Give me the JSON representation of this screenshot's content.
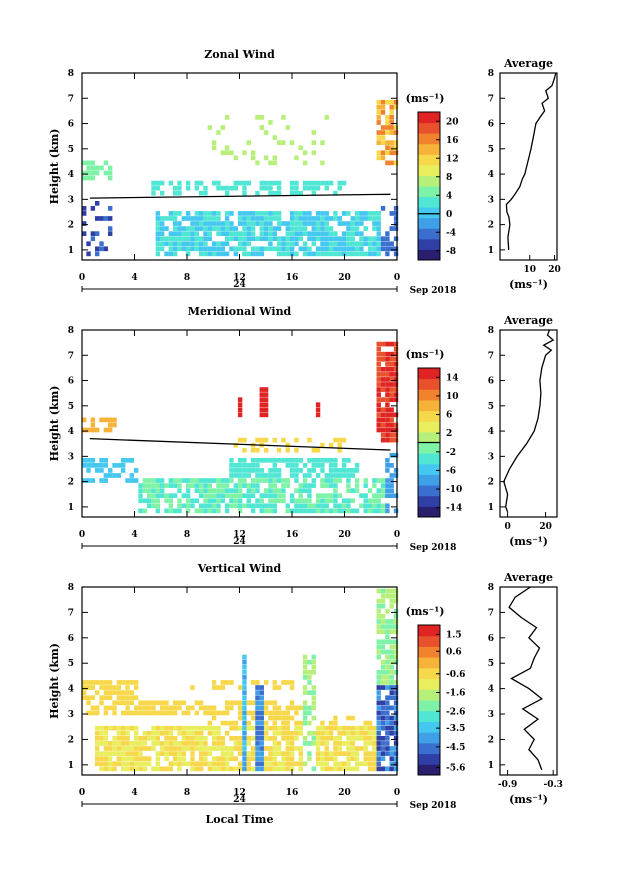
{
  "colors": [
    "#2a1e6e",
    "#2f3fa6",
    "#3a6fd0",
    "#3fa0e8",
    "#45c8f0",
    "#4fe6d4",
    "#7ef2a6",
    "#b6f07a",
    "#e8ee5e",
    "#f7d84a",
    "#f7b23a",
    "#f1822e",
    "#e9502c",
    "#e02424"
  ],
  "date_label": "Sep 2018",
  "day_label": "24",
  "x_label": "Local Time",
  "x_ticks": [
    "0",
    "4",
    "8",
    "12",
    "16",
    "20",
    "0"
  ],
  "chart_data": [
    {
      "type": "heatmap",
      "title": "Zonal Wind",
      "ylabel": "Height (km)",
      "yticks": [
        "1",
        "2",
        "3",
        "4",
        "5",
        "6",
        "7",
        "8"
      ],
      "xlim": [
        0,
        24
      ],
      "ylim": [
        0.6,
        8
      ],
      "colorbar": {
        "unit": "(ms⁻¹)",
        "ticks": [
          "-8",
          "-4",
          "0",
          "4",
          "8",
          "12",
          "16",
          "20"
        ],
        "range": [
          -10,
          22
        ],
        "line_value": 0
      },
      "profile": {
        "title": "Average",
        "xlabel": "(ms⁻¹)",
        "xticks": [
          "10",
          "20"
        ],
        "xtick_values": [
          10,
          20
        ],
        "xlim": [
          -2,
          21
        ],
        "points": [
          [
            1,
            1.5
          ],
          [
            1.5,
            1.2
          ],
          [
            2,
            2.0
          ],
          [
            2.3,
            1.6
          ],
          [
            2.5,
            0.8
          ],
          [
            2.8,
            0.6
          ],
          [
            3,
            2.5
          ],
          [
            3.2,
            4
          ],
          [
            3.5,
            6
          ],
          [
            3.8,
            7
          ],
          [
            4,
            8
          ],
          [
            4.4,
            9
          ],
          [
            5,
            10.5
          ],
          [
            5.5,
            11.5
          ],
          [
            6,
            12.5
          ],
          [
            6.3,
            14.5
          ],
          [
            6.5,
            16
          ],
          [
            6.8,
            15
          ],
          [
            7,
            17.5
          ],
          [
            7.3,
            16.5
          ],
          [
            7.5,
            19
          ],
          [
            7.8,
            20
          ],
          [
            8,
            20.5
          ]
        ]
      }
    },
    {
      "type": "heatmap",
      "title": "Meridional Wind",
      "ylabel": "Height (km)",
      "yticks": [
        "1",
        "2",
        "3",
        "4",
        "5",
        "6",
        "7",
        "8"
      ],
      "xlim": [
        0,
        24
      ],
      "ylim": [
        0.6,
        8
      ],
      "colorbar": {
        "unit": "(ms⁻¹)",
        "ticks": [
          "-14",
          "-10",
          "-6",
          "-2",
          "2",
          "6",
          "10",
          "14"
        ],
        "range": [
          -16,
          16
        ],
        "line_value": 0
      },
      "profile": {
        "title": "Average",
        "xlabel": "(ms⁻¹)",
        "xticks": [
          "0",
          "20"
        ],
        "xtick_values": [
          0,
          20
        ],
        "xlim": [
          -4,
          26
        ],
        "points": [
          [
            0.8,
            0
          ],
          [
            1,
            -1
          ],
          [
            1.5,
            0
          ],
          [
            2,
            -2
          ],
          [
            2.5,
            1
          ],
          [
            3,
            5
          ],
          [
            3.5,
            10
          ],
          [
            4,
            14
          ],
          [
            4.5,
            16
          ],
          [
            5,
            17
          ],
          [
            5.5,
            17.5
          ],
          [
            6,
            17
          ],
          [
            6.5,
            18
          ],
          [
            7,
            20
          ],
          [
            7.2,
            23
          ],
          [
            7.4,
            19
          ],
          [
            7.6,
            24
          ],
          [
            7.8,
            21
          ],
          [
            8,
            22
          ]
        ]
      }
    },
    {
      "type": "heatmap",
      "title": "Vertical Wind",
      "ylabel": "Height (km)",
      "yticks": [
        "1",
        "2",
        "3",
        "4",
        "5",
        "6",
        "7",
        "8"
      ],
      "xlim": [
        0,
        24
      ],
      "ylim": [
        0.6,
        8
      ],
      "colorbar": {
        "unit": "(ms⁻¹)",
        "ticks": [
          "-5.6",
          "-4.5",
          "-3.5",
          "-2.6",
          "-1.6",
          "-0.6",
          "0.6",
          "1.5"
        ],
        "range": [
          -6,
          2
        ]
      },
      "profile": {
        "title": "Average",
        "xlabel": "(ms⁻¹)",
        "xticks": [
          "-0.9",
          "-0.3"
        ],
        "xtick_values": [
          -0.9,
          -0.3
        ],
        "xlim": [
          -1.0,
          -0.25
        ],
        "points": [
          [
            0.8,
            -0.45
          ],
          [
            1.2,
            -0.5
          ],
          [
            1.6,
            -0.62
          ],
          [
            2,
            -0.55
          ],
          [
            2.4,
            -0.68
          ],
          [
            2.8,
            -0.5
          ],
          [
            3.2,
            -0.7
          ],
          [
            3.6,
            -0.45
          ],
          [
            4,
            -0.62
          ],
          [
            4.4,
            -0.85
          ],
          [
            4.8,
            -0.6
          ],
          [
            5.2,
            -0.55
          ],
          [
            5.6,
            -0.48
          ],
          [
            6,
            -0.62
          ],
          [
            6.4,
            -0.52
          ],
          [
            6.8,
            -0.72
          ],
          [
            7.2,
            -0.88
          ],
          [
            7.6,
            -0.8
          ],
          [
            8,
            -0.6
          ]
        ]
      }
    }
  ]
}
